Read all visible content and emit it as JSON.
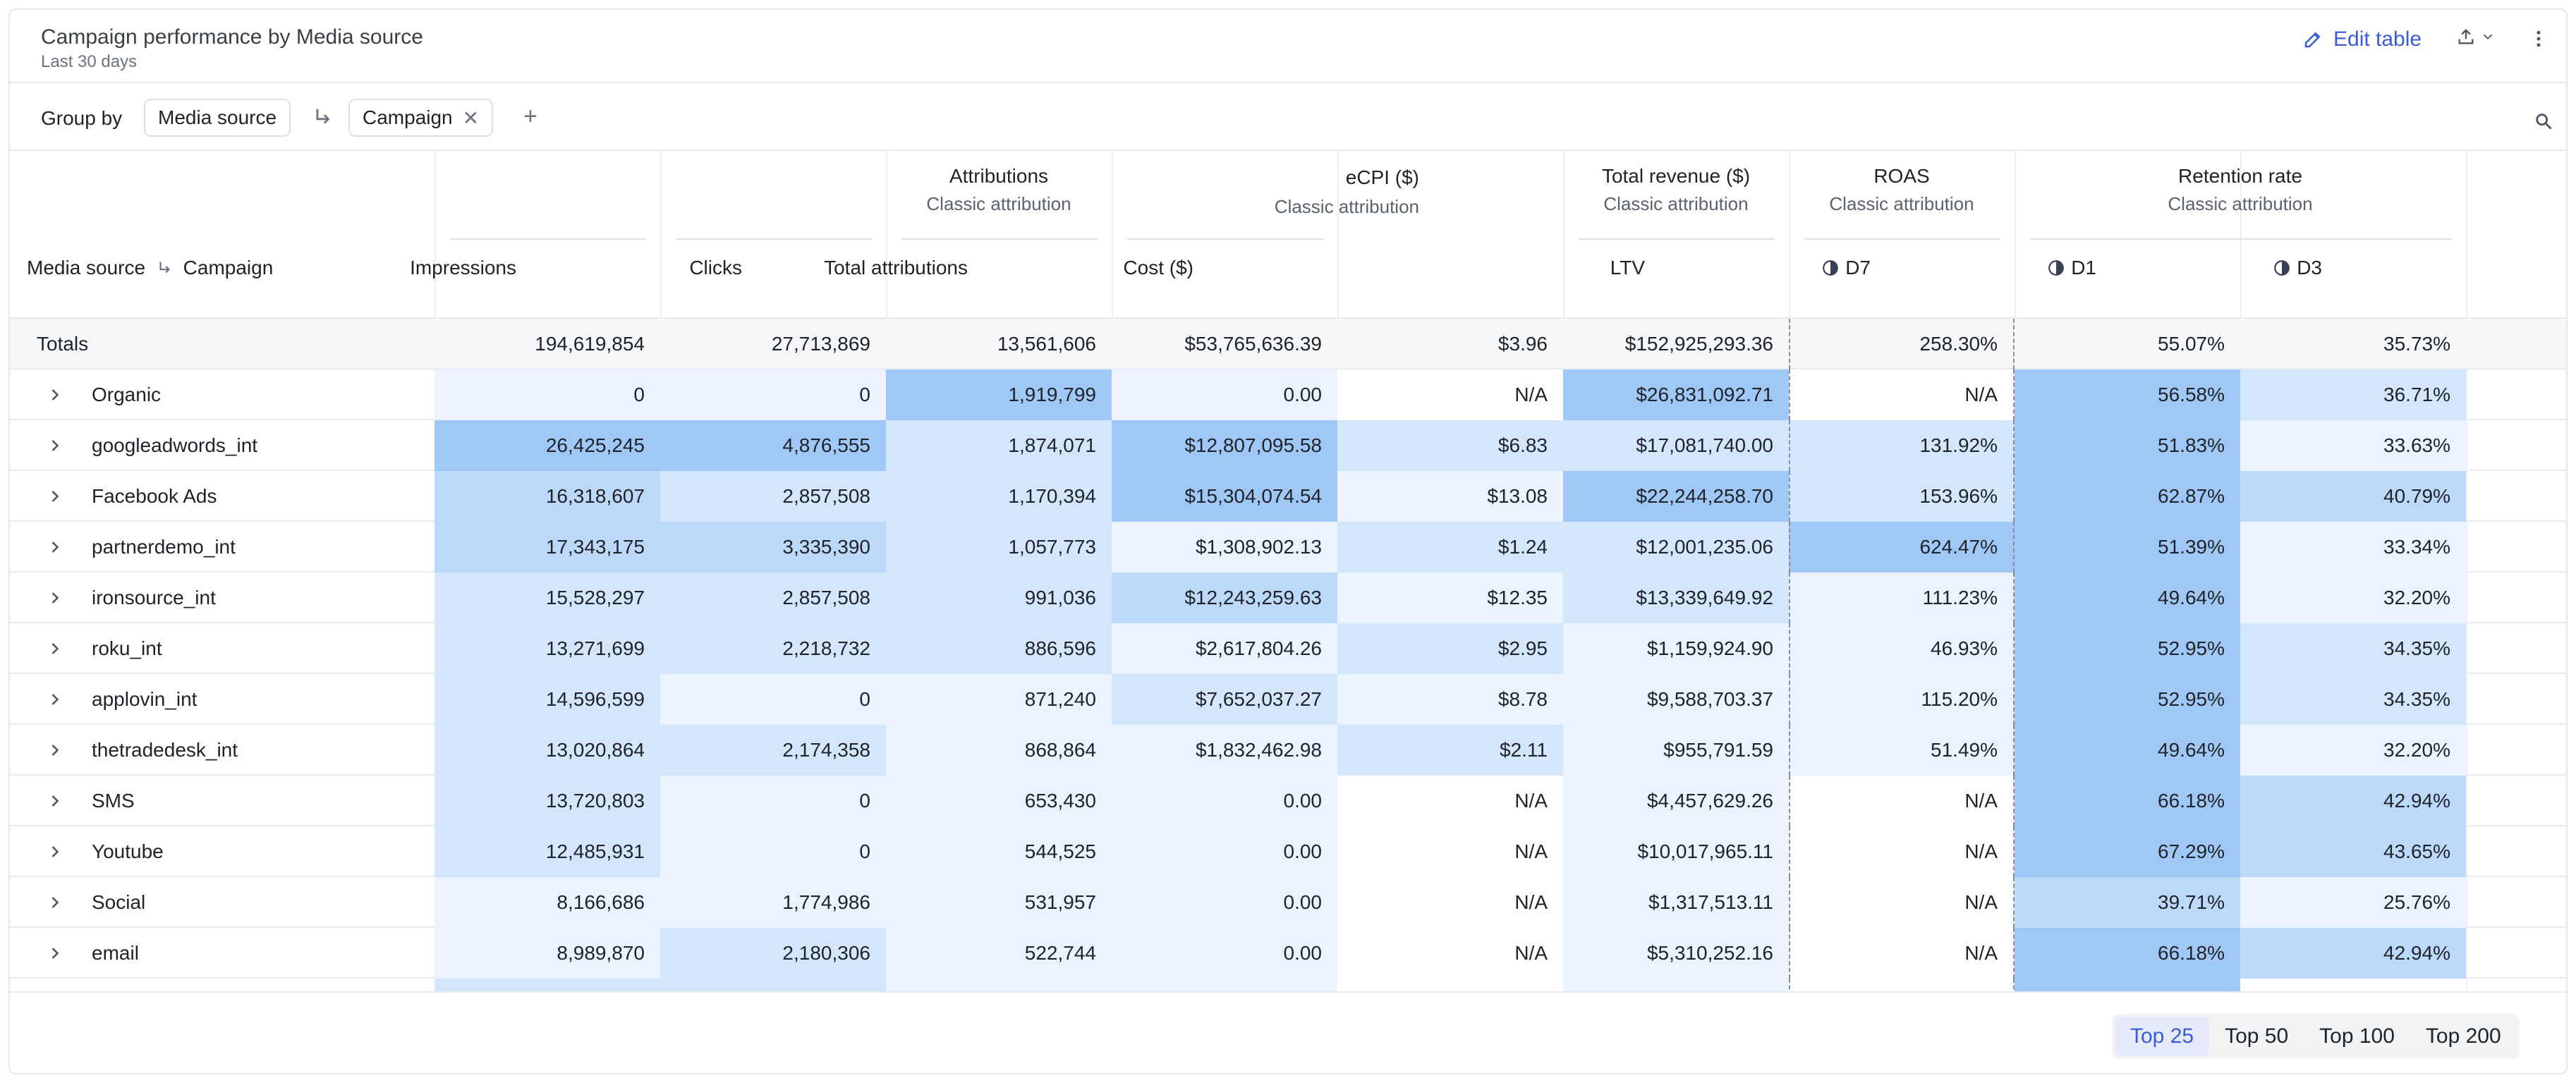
{
  "header": {
    "title": "Campaign performance by Media source",
    "subtitle": "Last 30 days",
    "edit_label": "Edit table"
  },
  "group_by": {
    "label": "Group by",
    "chips": [
      "Media source",
      "Campaign"
    ]
  },
  "columns": {
    "name_header": "Media source",
    "name_header_2": "Campaign",
    "impressions": "Impressions",
    "clicks": "Clicks",
    "attributions_group": "Attributions",
    "attributions_sub": "Classic attribution",
    "total_attributions": "Total attributions",
    "cost": "Cost ($)",
    "ecpi": "eCPI ($)",
    "ecpi_sub": "Classic attribution",
    "revenue": "Total revenue ($)",
    "revenue_sub": "Classic attribution",
    "ltv": "LTV",
    "roas": "ROAS",
    "roas_sub": "Classic attribution",
    "d7": "D7",
    "retention": "Retention rate",
    "retention_sub": "Classic attribution",
    "d1": "D1",
    "d3": "D3"
  },
  "totals": {
    "label": "Totals",
    "values": [
      "194,619,854",
      "27,713,869",
      "13,561,606",
      "$53,765,636.39",
      "$3.96",
      "$152,925,293.36",
      "258.30%",
      "55.07%",
      "35.73%"
    ]
  },
  "rows": [
    {
      "name": "Organic",
      "values": [
        "0",
        "0",
        "1,919,799",
        "0.00",
        "N/A",
        "$26,831,092.71",
        "N/A",
        "56.58%",
        "36.71%"
      ],
      "shade": [
        1,
        1,
        4,
        1,
        0,
        4,
        0,
        4,
        2
      ]
    },
    {
      "name": "googleadwords_int",
      "values": [
        "26,425,245",
        "4,876,555",
        "1,874,071",
        "$12,807,095.58",
        "$6.83",
        "$17,081,740.00",
        "131.92%",
        "51.83%",
        "33.63%"
      ],
      "shade": [
        4,
        4,
        2,
        4,
        2,
        2,
        2,
        4,
        1
      ]
    },
    {
      "name": "Facebook Ads",
      "values": [
        "16,318,607",
        "2,857,508",
        "1,170,394",
        "$15,304,074.54",
        "$13.08",
        "$22,244,258.70",
        "153.96%",
        "62.87%",
        "40.79%"
      ],
      "shade": [
        3,
        2,
        2,
        4,
        1,
        4,
        2,
        4,
        3
      ]
    },
    {
      "name": "partnerdemo_int",
      "values": [
        "17,343,175",
        "3,335,390",
        "1,057,773",
        "$1,308,902.13",
        "$1.24",
        "$12,001,235.06",
        "624.47%",
        "51.39%",
        "33.34%"
      ],
      "shade": [
        3,
        3,
        2,
        1,
        2,
        2,
        4,
        4,
        1
      ]
    },
    {
      "name": "ironsource_int",
      "values": [
        "15,528,297",
        "2,857,508",
        "991,036",
        "$12,243,259.63",
        "$12.35",
        "$13,339,649.92",
        "111.23%",
        "49.64%",
        "32.20%"
      ],
      "shade": [
        2,
        2,
        2,
        3,
        1,
        2,
        1,
        4,
        1
      ]
    },
    {
      "name": "roku_int",
      "values": [
        "13,271,699",
        "2,218,732",
        "886,596",
        "$2,617,804.26",
        "$2.95",
        "$1,159,924.90",
        "46.93%",
        "52.95%",
        "34.35%"
      ],
      "shade": [
        2,
        2,
        2,
        1,
        2,
        1,
        1,
        4,
        2
      ]
    },
    {
      "name": "applovin_int",
      "values": [
        "14,596,599",
        "0",
        "871,240",
        "$7,652,037.27",
        "$8.78",
        "$9,588,703.37",
        "115.20%",
        "52.95%",
        "34.35%"
      ],
      "shade": [
        2,
        1,
        1,
        2,
        1,
        1,
        1,
        4,
        2
      ]
    },
    {
      "name": "thetradedesk_int",
      "values": [
        "13,020,864",
        "2,174,358",
        "868,864",
        "$1,832,462.98",
        "$2.11",
        "$955,791.59",
        "51.49%",
        "49.64%",
        "32.20%"
      ],
      "shade": [
        2,
        2,
        1,
        1,
        2,
        1,
        1,
        4,
        1
      ]
    },
    {
      "name": "SMS",
      "values": [
        "13,720,803",
        "0",
        "653,430",
        "0.00",
        "N/A",
        "$4,457,629.26",
        "N/A",
        "66.18%",
        "42.94%"
      ],
      "shade": [
        2,
        1,
        1,
        1,
        0,
        1,
        0,
        4,
        3
      ]
    },
    {
      "name": "Youtube",
      "values": [
        "12,485,931",
        "0",
        "544,525",
        "0.00",
        "N/A",
        "$10,017,965.11",
        "N/A",
        "67.29%",
        "43.65%"
      ],
      "shade": [
        2,
        1,
        1,
        1,
        0,
        1,
        0,
        4,
        3
      ]
    },
    {
      "name": "Social",
      "values": [
        "8,166,686",
        "1,774,986",
        "531,957",
        "0.00",
        "N/A",
        "$1,317,513.11",
        "N/A",
        "39.71%",
        "25.76%"
      ],
      "shade": [
        1,
        1,
        1,
        1,
        0,
        1,
        0,
        3,
        1
      ]
    },
    {
      "name": "email",
      "values": [
        "8,989,870",
        "2,180,306",
        "522,744",
        "0.00",
        "N/A",
        "$5,310,252.16",
        "N/A",
        "66.18%",
        "42.94%"
      ],
      "shade": [
        1,
        2,
        1,
        1,
        0,
        1,
        0,
        4,
        3
      ]
    }
  ],
  "shade_colors": [
    "#ffffff",
    "#eaf3fe",
    "#d3e6fc",
    "#bcd9fa",
    "#a0c8f6"
  ],
  "footer": {
    "options": [
      "Top 25",
      "Top 50",
      "Top 100",
      "Top 200"
    ],
    "active": "Top 25"
  }
}
